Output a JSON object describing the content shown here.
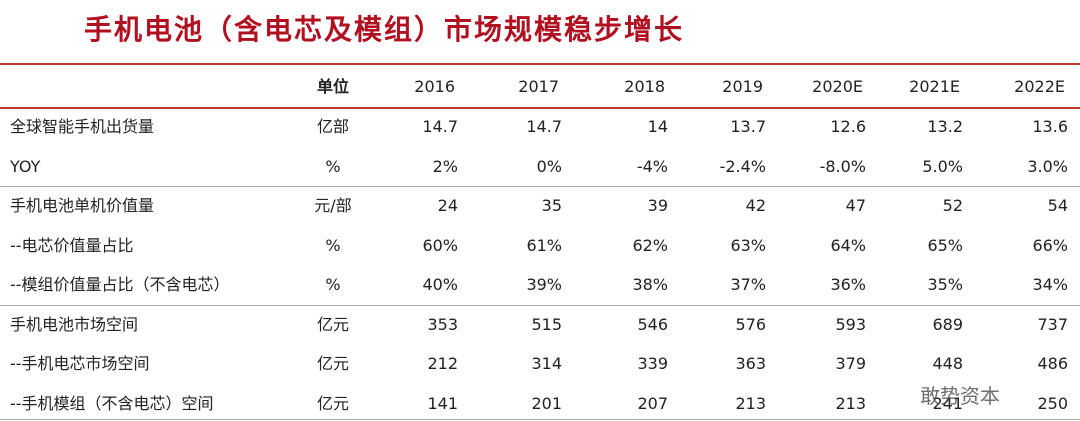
{
  "header": {
    "title": "手机电池（含电芯及模组）市场规模稳步增长"
  },
  "table": {
    "columns": [
      "单位",
      "2016",
      "2017",
      "2018",
      "2019",
      "2020E",
      "2021E",
      "2022E"
    ],
    "rows": [
      [
        "全球智能手机出货量",
        "亿部",
        "14.7",
        "14.7",
        "14",
        "13.7",
        "12.6",
        "13.2",
        "13.6"
      ],
      [
        "YOY",
        "%",
        "2%",
        "0%",
        "-4%",
        "-2.4%",
        "-8.0%",
        "5.0%",
        "3.0%"
      ],
      [
        "手机电池单机价值量",
        "元/部",
        "24",
        "35",
        "39",
        "42",
        "47",
        "52",
        "54"
      ],
      [
        "--电芯价值量占比",
        "%",
        "60%",
        "61%",
        "62%",
        "63%",
        "64%",
        "65%",
        "66%"
      ],
      [
        "--模组价值量占比（不含电芯）",
        "%",
        "40%",
        "39%",
        "38%",
        "37%",
        "36%",
        "35%",
        "34%"
      ],
      [
        "手机电池市场空间",
        "亿元",
        "353",
        "515",
        "546",
        "576",
        "593",
        "689",
        "737"
      ],
      [
        "--手机电芯市场空间",
        "亿元",
        "212",
        "314",
        "339",
        "363",
        "379",
        "448",
        "486"
      ],
      [
        "--手机模组（不含电芯）空间",
        "亿元",
        "141",
        "201",
        "207",
        "213",
        "213",
        "241",
        "250"
      ]
    ]
  },
  "watermark": "敢势资本"
}
